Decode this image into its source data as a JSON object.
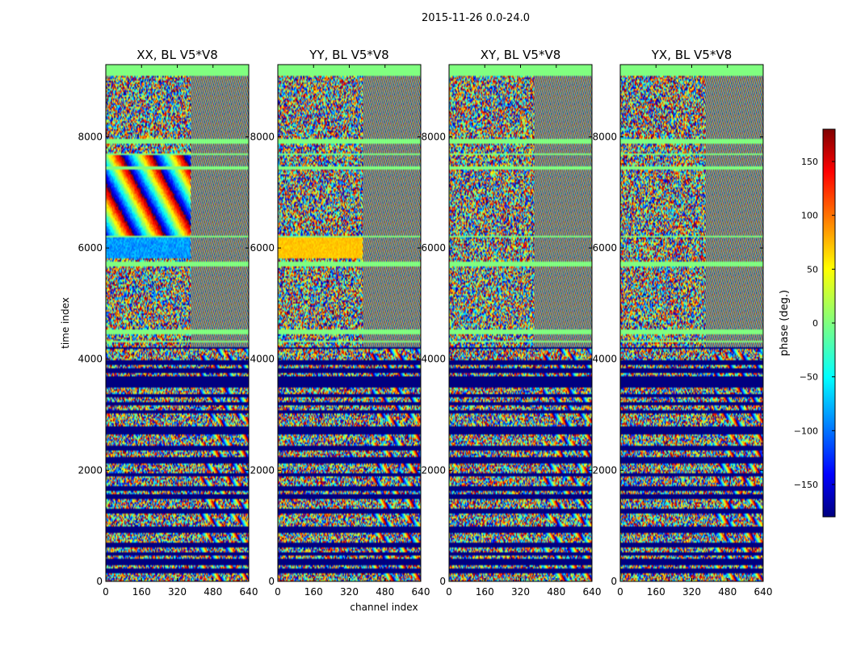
{
  "figure": {
    "suptitle": "2015-11-26 0.0-24.0"
  },
  "chart_data": [
    {
      "type": "heatmap",
      "title": "XX, BL V5*V8",
      "xlabel": "",
      "ylabel": "time index",
      "xlim": [
        0,
        640
      ],
      "ylim": [
        0,
        9300
      ],
      "xticks": [
        "0",
        "160",
        "320",
        "480",
        "640"
      ],
      "yticks": [
        "0",
        "2000",
        "4000",
        "6000",
        "8000"
      ],
      "value_range": [
        -180,
        180
      ],
      "note": "visibility phase per (channel, time) sample; dense speckled pattern"
    },
    {
      "type": "heatmap",
      "title": "YY, BL V5*V8",
      "xlabel": "channel index",
      "ylabel": "",
      "xlim": [
        0,
        640
      ],
      "ylim": [
        0,
        9300
      ],
      "xticks": [
        "0",
        "160",
        "320",
        "480",
        "640"
      ],
      "yticks": [
        "0",
        "2000",
        "4000",
        "6000",
        "8000"
      ],
      "value_range": [
        -180,
        180
      ]
    },
    {
      "type": "heatmap",
      "title": "XY, BL V5*V8",
      "xlabel": "",
      "ylabel": "",
      "xlim": [
        0,
        640
      ],
      "ylim": [
        0,
        9300
      ],
      "xticks": [
        "0",
        "160",
        "320",
        "480",
        "640"
      ],
      "yticks": [
        "0",
        "2000",
        "4000",
        "6000",
        "8000"
      ],
      "value_range": [
        -180,
        180
      ]
    },
    {
      "type": "heatmap",
      "title": "YX, BL V5*V8",
      "xlabel": "",
      "ylabel": "",
      "xlim": [
        0,
        640
      ],
      "ylim": [
        0,
        9300
      ],
      "xticks": [
        "0",
        "160",
        "320",
        "480",
        "640"
      ],
      "yticks": [
        "0",
        "2000",
        "4000",
        "6000",
        "8000"
      ],
      "value_range": [
        -180,
        180
      ]
    }
  ],
  "colorbar": {
    "label": "phase (deg.)",
    "range": [
      -180,
      180
    ],
    "ticks": [
      "150",
      "100",
      "50",
      "0",
      "−50",
      "−100",
      "−150"
    ],
    "tick_values": [
      150,
      100,
      50,
      0,
      -50,
      -100,
      -150
    ],
    "colormap": "jet",
    "colors": {
      "dark_blue": "#00007f",
      "blue": "#0000ff",
      "cyan": "#00ffff",
      "green": "#7fff7f",
      "yellow": "#ffff00",
      "red": "#ff0000",
      "dark_red": "#7f0000"
    }
  }
}
